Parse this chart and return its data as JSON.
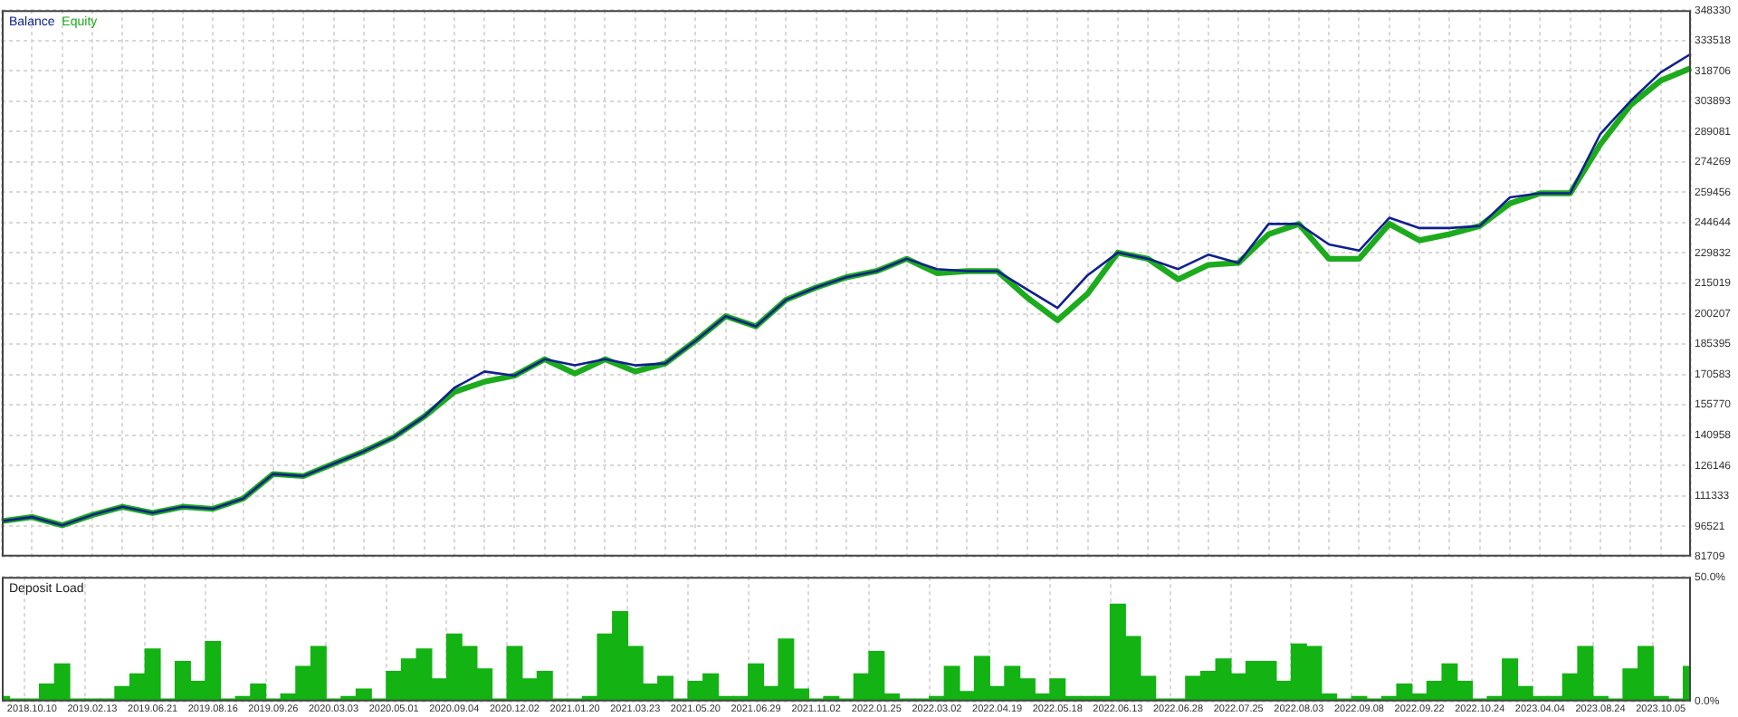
{
  "chart_data": [
    {
      "type": "line",
      "legend": "top left",
      "grid": true,
      "tick_labels": "y",
      "categories": [
        null,
        "2018.10.10",
        null,
        "2019.02.13",
        null,
        "2019.06.21",
        null,
        "2019.08.16",
        null,
        "2019.09.26",
        null,
        "2020.03.03",
        null,
        "2020.05.01",
        null,
        "2020.09.04",
        null,
        "2020.12.02",
        null,
        "2021.01.20",
        null,
        "2021.03.23",
        null,
        "2021.05.20",
        null,
        "2021.06.29",
        null,
        "2021.11.02",
        null,
        "2022.01.25",
        null,
        "2022.03.02",
        null,
        "2022.04.19",
        null,
        "2022.05.18",
        null,
        "2022.06.13",
        null,
        "2022.06.28",
        null,
        "2022.07.25",
        null,
        "2022.08.03",
        null,
        "2022.09.08",
        null,
        "2022.09.22",
        null,
        "2022.10.24",
        null,
        "2023.04.04",
        null,
        "2023.08.24",
        null,
        "2023.10.05",
        null
      ],
      "ylim": [
        81709,
        348330
      ],
      "yticks": [
        81709,
        96521,
        111333,
        126146,
        140958,
        155770,
        170583,
        185395,
        200207,
        215019,
        229832,
        244644,
        259456,
        274269,
        289081,
        303893,
        318706,
        333518,
        348330
      ],
      "series": [
        {
          "name": "Balance",
          "color": "#10208f",
          "values": [
            99000,
            101000,
            97000,
            102000,
            106000,
            103000,
            106000,
            105000,
            110000,
            122000,
            121000,
            127000,
            133000,
            140000,
            150000,
            164000,
            172000,
            170000,
            178000,
            175000,
            178000,
            175000,
            176000,
            187000,
            199000,
            194000,
            207000,
            213000,
            218000,
            221000,
            227000,
            222000,
            221000,
            221000,
            212000,
            203000,
            219000,
            230000,
            227000,
            222000,
            229000,
            225000,
            244000,
            244000,
            234000,
            231000,
            247000,
            242000,
            242000,
            243000,
            257000,
            259000,
            259000,
            288000,
            304000,
            318000,
            327000
          ]
        },
        {
          "name": "Equity",
          "color": "#1cab1c",
          "values": [
            99000,
            101000,
            97000,
            102000,
            106000,
            103000,
            106000,
            105000,
            110000,
            122000,
            121000,
            127000,
            133000,
            140000,
            150000,
            162000,
            167000,
            170000,
            178000,
            171000,
            178000,
            172000,
            176000,
            187000,
            199000,
            194000,
            207000,
            213000,
            218000,
            221000,
            227000,
            220000,
            221000,
            221000,
            208000,
            197000,
            210000,
            230000,
            227000,
            217000,
            224000,
            225000,
            239000,
            244000,
            227000,
            227000,
            244000,
            236000,
            239000,
            243000,
            254000,
            259000,
            259000,
            283000,
            302000,
            314000,
            320000
          ]
        }
      ]
    },
    {
      "type": "bar",
      "title": "Deposit Load",
      "grid": true,
      "categories": [
        null,
        null,
        "2018.10.10",
        null,
        null,
        null,
        "2019.02.13",
        null,
        null,
        null,
        "2019.06.21",
        null,
        null,
        null,
        "2019.08.16",
        null,
        null,
        null,
        "2019.09.26",
        null,
        null,
        null,
        "2020.03.03",
        null,
        null,
        null,
        "2020.05.01",
        null,
        null,
        null,
        "2020.09.04",
        null,
        null,
        null,
        "2020.12.02",
        null,
        null,
        null,
        "2021.01.20",
        null,
        null,
        null,
        "2021.03.23",
        null,
        null,
        null,
        "2021.05.20",
        null,
        null,
        null,
        "2021.06.29",
        null,
        null,
        null,
        "2021.11.02",
        null,
        null,
        null,
        "2022.01.25",
        null,
        null,
        null,
        "2022.03.02",
        null,
        null,
        null,
        "2022.04.19",
        null,
        null,
        null,
        "2022.05.18",
        null,
        null,
        null,
        "2022.06.13",
        null,
        null,
        null,
        "2022.06.28",
        null,
        null,
        null,
        "2022.07.25",
        null,
        null,
        null,
        "2022.08.03",
        null,
        null,
        null,
        "2022.09.08",
        null,
        null,
        null,
        "2022.09.22",
        null,
        null,
        null,
        "2022.10.24",
        null,
        null,
        null,
        "2023.04.04",
        null,
        null,
        null,
        "2023.08.24",
        null,
        null,
        null,
        "2023.10.05",
        null,
        null
      ],
      "ylim": [
        0,
        50
      ],
      "yticks": [
        {
          "value": 0,
          "label": "0.0%"
        },
        {
          "value": 50,
          "label": "50.0%"
        }
      ],
      "series": [
        {
          "color": "#12b312",
          "values": [
            2,
            1,
            1,
            7,
            15,
            1,
            1,
            1,
            6,
            11,
            21,
            1,
            16,
            8,
            24,
            1,
            2,
            7,
            1,
            3,
            14,
            22,
            1,
            2,
            5,
            1,
            12,
            17,
            21,
            9,
            27,
            22,
            13,
            1,
            22,
            9,
            12,
            1,
            1,
            2,
            27,
            36,
            22,
            7,
            10,
            1,
            8,
            11,
            2,
            2,
            15,
            6,
            25,
            5,
            1,
            2,
            1,
            11,
            20,
            3,
            1,
            1,
            2,
            14,
            4,
            18,
            6,
            14,
            9,
            3,
            9,
            2,
            2,
            2,
            39,
            26,
            10,
            1,
            1,
            10,
            12,
            17,
            11,
            16,
            16,
            8,
            23,
            22,
            3,
            1,
            2,
            1,
            2,
            7,
            3,
            8,
            15,
            8,
            1,
            2,
            17,
            6,
            2,
            2,
            11,
            22,
            2,
            1,
            13,
            22,
            2,
            1,
            14
          ]
        }
      ]
    }
  ]
}
